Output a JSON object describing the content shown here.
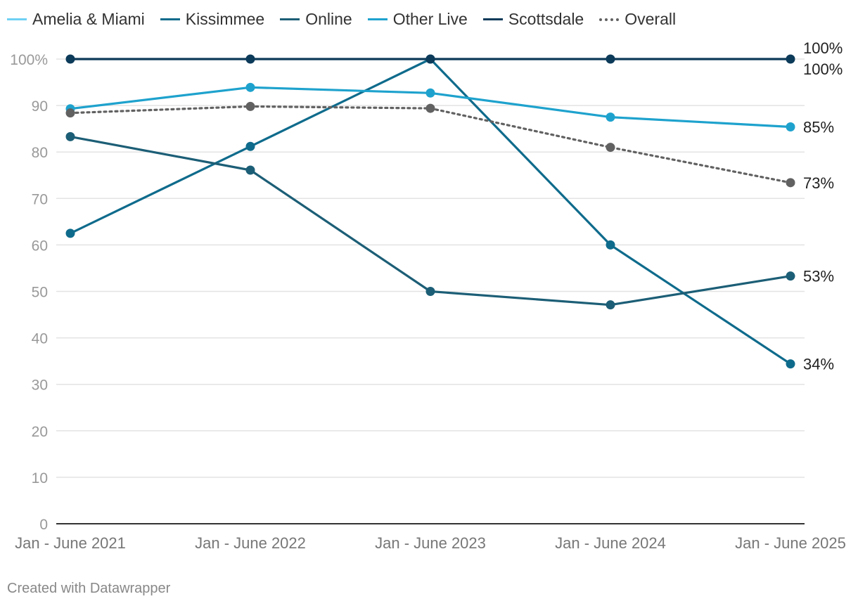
{
  "chart_data": {
    "type": "line",
    "title": "",
    "xlabel": "",
    "ylabel": "",
    "categories": [
      "Jan - June 2021",
      "Jan - June 2022",
      "Jan - June 2023",
      "Jan - June 2024",
      "Jan - June 2025"
    ],
    "ylim": [
      0,
      100
    ],
    "y_ticks": [
      {
        "value": 0,
        "label": "0"
      },
      {
        "value": 10,
        "label": "10"
      },
      {
        "value": 20,
        "label": "20"
      },
      {
        "value": 30,
        "label": "30"
      },
      {
        "value": 40,
        "label": "40"
      },
      {
        "value": 50,
        "label": "50"
      },
      {
        "value": 60,
        "label": "60"
      },
      {
        "value": 70,
        "label": "70"
      },
      {
        "value": 80,
        "label": "80"
      },
      {
        "value": 90,
        "label": "90"
      },
      {
        "value": 100,
        "label": "100%"
      }
    ],
    "grid": true,
    "legend_position": "top-left",
    "series": [
      {
        "name": "Amelia & Miami",
        "color": "#6fd0f4",
        "style": "solid",
        "values": [
          null,
          null,
          null,
          null,
          null
        ],
        "end_label": ""
      },
      {
        "name": "Kissimmee",
        "color": "#0f6b8c",
        "style": "solid",
        "values": [
          62.5,
          81.2,
          100,
          60,
          34.4
        ],
        "end_label": "34%"
      },
      {
        "name": "Online",
        "color": "#1c5e76",
        "style": "solid",
        "values": [
          83.3,
          76.1,
          50,
          47.1,
          53.3
        ],
        "end_label": "53%"
      },
      {
        "name": "Other Live",
        "color": "#1ea2cd",
        "style": "solid",
        "values": [
          89.3,
          93.9,
          92.7,
          87.5,
          85.4
        ],
        "end_label": "85%"
      },
      {
        "name": "Scottsdale",
        "color": "#0c3a59",
        "style": "solid",
        "values": [
          100,
          100,
          100,
          100,
          100
        ],
        "end_label": "100%"
      },
      {
        "name": "Overall",
        "color": "#616161",
        "style": "dotted",
        "values": [
          88.4,
          89.8,
          89.4,
          81.0,
          73.4
        ],
        "end_label": "73%"
      }
    ],
    "extra_end_labels": [
      "100%"
    ]
  },
  "footer": "Created with Datawrapper"
}
